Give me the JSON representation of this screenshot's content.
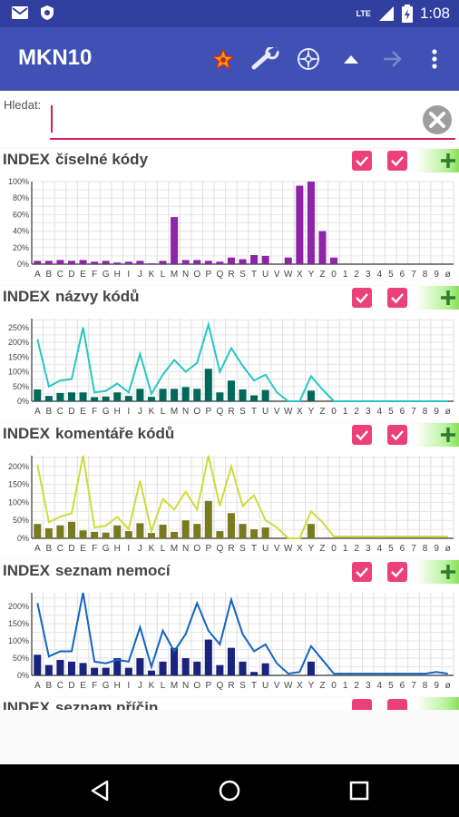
{
  "status": {
    "time": "1:08",
    "network": "LTE"
  },
  "app": {
    "title": "MKN10"
  },
  "search": {
    "label": "Hledat:",
    "value": ""
  },
  "letters": [
    "A",
    "B",
    "C",
    "D",
    "E",
    "F",
    "G",
    "H",
    "I",
    "J",
    "K",
    "L",
    "M",
    "N",
    "O",
    "P",
    "Q",
    "R",
    "S",
    "T",
    "U",
    "V",
    "W",
    "X",
    "Y",
    "Z",
    "0",
    "1",
    "2",
    "3",
    "4",
    "5",
    "6",
    "7",
    "8",
    "9",
    "ø"
  ],
  "sections": [
    {
      "title": "INDEX",
      "subtitle": "číselné kódy",
      "checkbox1": true,
      "checkbox2": true,
      "chart_data": {
        "type": "bar",
        "yticks": [
          "100%",
          "80%",
          "60%",
          "40%",
          "20%",
          "0%"
        ],
        "ylim": [
          0,
          100
        ],
        "bar_color": "#8e24aa",
        "values": [
          4,
          4,
          5,
          4,
          5,
          3,
          4,
          2,
          3,
          4,
          1,
          4,
          57,
          5,
          5,
          4,
          3,
          8,
          6,
          11,
          10,
          0,
          8,
          95,
          100,
          40,
          8,
          0,
          0,
          0,
          0,
          0,
          0,
          0,
          0,
          0,
          0
        ]
      }
    },
    {
      "title": "INDEX",
      "subtitle": "názvy kódů",
      "checkbox1": true,
      "checkbox2": true,
      "chart_data": {
        "type": "bar+line",
        "yticks": [
          "250%",
          "200%",
          "150%",
          "100%",
          "50%",
          "0%"
        ],
        "ylim": [
          0,
          280
        ],
        "bar_color": "#00695c",
        "line_color": "#26c6c6",
        "values": [
          40,
          18,
          28,
          30,
          30,
          14,
          16,
          30,
          18,
          42,
          15,
          42,
          42,
          48,
          42,
          110,
          30,
          70,
          40,
          20,
          38,
          0,
          0,
          0,
          36,
          0,
          0,
          0,
          0,
          0,
          0,
          0,
          0,
          0,
          0,
          0,
          0
        ],
        "line": [
          210,
          50,
          70,
          75,
          250,
          30,
          35,
          60,
          30,
          160,
          25,
          90,
          140,
          100,
          130,
          260,
          100,
          180,
          120,
          70,
          90,
          30,
          0,
          0,
          85,
          40,
          0,
          0,
          0,
          0,
          0,
          0,
          0,
          0,
          0,
          0,
          0
        ]
      }
    },
    {
      "title": "INDEX",
      "subtitle": "komentáře kódů",
      "checkbox1": true,
      "checkbox2": true,
      "chart_data": {
        "type": "bar+line",
        "yticks": [
          "200%",
          "150%",
          "100%",
          "50%",
          "0%"
        ],
        "ylim": [
          0,
          230
        ],
        "bar_color": "#7a7a20",
        "line_color": "#cddc39",
        "values": [
          40,
          28,
          36,
          46,
          22,
          18,
          16,
          36,
          20,
          42,
          15,
          38,
          18,
          50,
          40,
          104,
          20,
          70,
          40,
          25,
          30,
          0,
          0,
          0,
          40,
          0,
          0,
          0,
          0,
          0,
          0,
          0,
          0,
          0,
          0,
          0,
          0
        ],
        "line": [
          205,
          45,
          60,
          70,
          230,
          30,
          35,
          60,
          25,
          160,
          20,
          110,
          80,
          130,
          80,
          230,
          90,
          200,
          90,
          120,
          50,
          30,
          0,
          0,
          75,
          45,
          5,
          5,
          5,
          5,
          5,
          5,
          5,
          5,
          5,
          5,
          5
        ]
      }
    },
    {
      "title": "INDEX",
      "subtitle": "seznam nemocí",
      "checkbox1": true,
      "checkbox2": true,
      "chart_data": {
        "type": "bar+line",
        "yticks": [
          "200%",
          "150%",
          "100%",
          "50%",
          "0%"
        ],
        "ylim": [
          0,
          240
        ],
        "bar_color": "#1a237e",
        "line_color": "#1565c0",
        "values": [
          60,
          30,
          45,
          40,
          36,
          22,
          22,
          50,
          22,
          50,
          14,
          40,
          80,
          50,
          40,
          104,
          30,
          80,
          40,
          10,
          35,
          0,
          0,
          0,
          40,
          0,
          0,
          0,
          0,
          0,
          0,
          0,
          0,
          0,
          0,
          0,
          0
        ],
        "line": [
          210,
          55,
          70,
          70,
          240,
          40,
          35,
          45,
          40,
          140,
          25,
          130,
          70,
          120,
          210,
          130,
          90,
          220,
          120,
          70,
          90,
          35,
          5,
          10,
          85,
          45,
          5,
          5,
          5,
          5,
          5,
          5,
          5,
          5,
          5,
          10,
          5
        ]
      }
    }
  ],
  "partial_section": {
    "title": "INDEX",
    "subtitle": "seznam příčin"
  }
}
